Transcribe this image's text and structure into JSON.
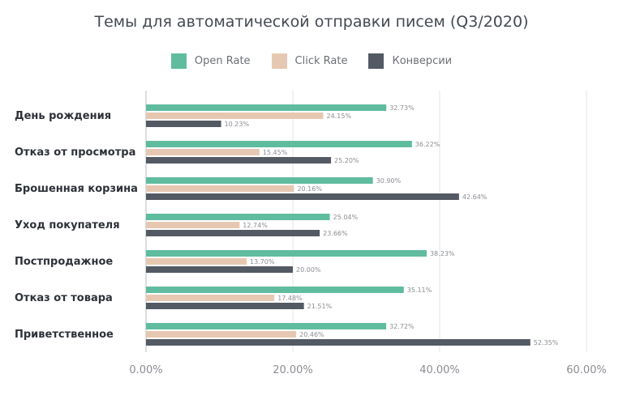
{
  "chart_data": {
    "type": "bar",
    "orientation": "horizontal",
    "title": "Темы для автоматической отправки писем (Q3/2020)",
    "categories": [
      "День рождения",
      "Отказ от просмотра",
      "Брошенная корзина",
      "Уход покупателя",
      "Постпродажное",
      "Отказ от товара",
      "Приветственное"
    ],
    "series": [
      {
        "name": "Open Rate",
        "color": "#5fbc9e",
        "values": [
          32.73,
          36.22,
          30.9,
          25.04,
          38.23,
          35.11,
          32.72
        ],
        "labels": [
          "32.73%",
          "36.22%",
          "30.90%",
          "25.04%",
          "38.23%",
          "35.11%",
          "32.72%"
        ]
      },
      {
        "name": "Click Rate",
        "color": "#e6c8b2",
        "values": [
          24.15,
          15.45,
          20.16,
          12.74,
          13.7,
          17.48,
          20.46
        ],
        "labels": [
          "24.15%",
          "15.45%",
          "20.16%",
          "12.74%",
          "13.70%",
          "17.48%",
          "20.46%"
        ]
      },
      {
        "name": "Конверсии",
        "color": "#545a63",
        "values": [
          10.23,
          25.2,
          42.64,
          23.66,
          20.0,
          21.51,
          52.35
        ],
        "labels": [
          "10.23%",
          "25.20%",
          "42.64%",
          "23.66%",
          "20.00%",
          "21.51%",
          "52.35%"
        ]
      }
    ],
    "xlim": [
      0,
      60
    ],
    "xticks": [
      0,
      20,
      40,
      60
    ],
    "xtick_labels": [
      "0.00%",
      "20.00%",
      "40.00%",
      "60.00%"
    ],
    "grid": true,
    "legend_position": "top"
  }
}
